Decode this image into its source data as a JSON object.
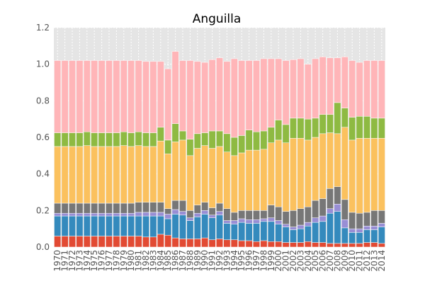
{
  "chart_data": {
    "type": "bar",
    "stacked": true,
    "title": "Anguilla",
    "xlabel": "",
    "ylabel": "",
    "ylim": [
      0,
      1.2
    ],
    "yticks": [
      "0.0",
      "0.2",
      "0.4",
      "0.6",
      "0.8",
      "1.0",
      "1.2"
    ],
    "grid": true,
    "legend": "none",
    "categories": [
      "1970",
      "1971",
      "1972",
      "1973",
      "1974",
      "1975",
      "1976",
      "1977",
      "1978",
      "1979",
      "1980",
      "1981",
      "1982",
      "1983",
      "1984",
      "1985",
      "1986",
      "1987",
      "1988",
      "1989",
      "1990",
      "1991",
      "1992",
      "1993",
      "1994",
      "1995",
      "1996",
      "1997",
      "1998",
      "1999",
      "2000",
      "2001",
      "2002",
      "2003",
      "2004",
      "2005",
      "2006",
      "2007",
      "2008",
      "2009",
      "2010",
      "2011",
      "2012",
      "2013",
      "2014"
    ],
    "series": [
      {
        "color": "#e24a33",
        "values": [
          0.06,
          0.06,
          0.06,
          0.06,
          0.06,
          0.06,
          0.06,
          0.06,
          0.06,
          0.06,
          0.06,
          0.06,
          0.055,
          0.055,
          0.07,
          0.065,
          0.05,
          0.045,
          0.045,
          0.045,
          0.05,
          0.04,
          0.045,
          0.04,
          0.04,
          0.035,
          0.035,
          0.03,
          0.035,
          0.03,
          0.03,
          0.025,
          0.025,
          0.025,
          0.03,
          0.025,
          0.025,
          0.02,
          0.02,
          0.02,
          0.02,
          0.02,
          0.025,
          0.025,
          0.02
        ]
      },
      {
        "color": "#348abd",
        "values": [
          0.11,
          0.11,
          0.11,
          0.11,
          0.11,
          0.11,
          0.11,
          0.11,
          0.11,
          0.11,
          0.11,
          0.11,
          0.115,
          0.115,
          0.1,
          0.09,
          0.13,
          0.13,
          0.1,
          0.12,
          0.13,
          0.12,
          0.13,
          0.09,
          0.085,
          0.1,
          0.095,
          0.1,
          0.105,
          0.11,
          0.095,
          0.085,
          0.07,
          0.075,
          0.085,
          0.11,
          0.115,
          0.165,
          0.175,
          0.085,
          0.06,
          0.06,
          0.07,
          0.07,
          0.09
        ]
      },
      {
        "color": "#988ed5",
        "values": [
          0.015,
          0.015,
          0.015,
          0.015,
          0.015,
          0.015,
          0.015,
          0.015,
          0.015,
          0.015,
          0.015,
          0.02,
          0.02,
          0.02,
          0.02,
          0.025,
          0.025,
          0.02,
          0.015,
          0.02,
          0.02,
          0.015,
          0.02,
          0.015,
          0.02,
          0.02,
          0.02,
          0.02,
          0.015,
          0.02,
          0.02,
          0.015,
          0.015,
          0.02,
          0.02,
          0.025,
          0.03,
          0.025,
          0.04,
          0.045,
          0.02,
          0.02,
          0.02,
          0.02,
          0.02
        ]
      },
      {
        "color": "#777777",
        "values": [
          0.055,
          0.055,
          0.055,
          0.055,
          0.055,
          0.055,
          0.055,
          0.055,
          0.055,
          0.055,
          0.055,
          0.055,
          0.055,
          0.055,
          0.055,
          0.03,
          0.05,
          0.06,
          0.04,
          0.045,
          0.045,
          0.04,
          0.045,
          0.065,
          0.045,
          0.045,
          0.05,
          0.05,
          0.045,
          0.07,
          0.075,
          0.07,
          0.09,
          0.09,
          0.085,
          0.095,
          0.095,
          0.11,
          0.095,
          0.11,
          0.09,
          0.085,
          0.075,
          0.085,
          0.07
        ]
      },
      {
        "color": "#fbc15e",
        "values": [
          0.31,
          0.31,
          0.31,
          0.31,
          0.315,
          0.31,
          0.31,
          0.31,
          0.31,
          0.315,
          0.31,
          0.31,
          0.305,
          0.305,
          0.335,
          0.3,
          0.32,
          0.33,
          0.3,
          0.31,
          0.31,
          0.325,
          0.31,
          0.31,
          0.31,
          0.315,
          0.33,
          0.33,
          0.335,
          0.34,
          0.365,
          0.375,
          0.395,
          0.385,
          0.365,
          0.345,
          0.355,
          0.305,
          0.29,
          0.395,
          0.395,
          0.41,
          0.405,
          0.395,
          0.395
        ]
      },
      {
        "color": "#8eba42",
        "values": [
          0.075,
          0.075,
          0.075,
          0.075,
          0.075,
          0.075,
          0.075,
          0.075,
          0.075,
          0.075,
          0.075,
          0.075,
          0.075,
          0.075,
          0.075,
          0.075,
          0.1,
          0.05,
          0.09,
          0.08,
          0.07,
          0.095,
          0.085,
          0.1,
          0.1,
          0.095,
          0.11,
          0.1,
          0.1,
          0.085,
          0.11,
          0.1,
          0.11,
          0.11,
          0.115,
          0.105,
          0.105,
          0.1,
          0.17,
          0.105,
          0.125,
          0.12,
          0.12,
          0.11,
          0.11
        ]
      },
      {
        "color": "#ffb5b8",
        "values": [
          0.395,
          0.395,
          0.395,
          0.395,
          0.39,
          0.395,
          0.395,
          0.395,
          0.395,
          0.39,
          0.395,
          0.39,
          0.39,
          0.39,
          0.36,
          0.39,
          0.395,
          0.385,
          0.43,
          0.395,
          0.385,
          0.39,
          0.4,
          0.395,
          0.43,
          0.41,
          0.38,
          0.39,
          0.395,
          0.375,
          0.335,
          0.35,
          0.32,
          0.325,
          0.3,
          0.325,
          0.315,
          0.31,
          0.245,
          0.28,
          0.31,
          0.295,
          0.305,
          0.315,
          0.315
        ]
      }
    ]
  }
}
